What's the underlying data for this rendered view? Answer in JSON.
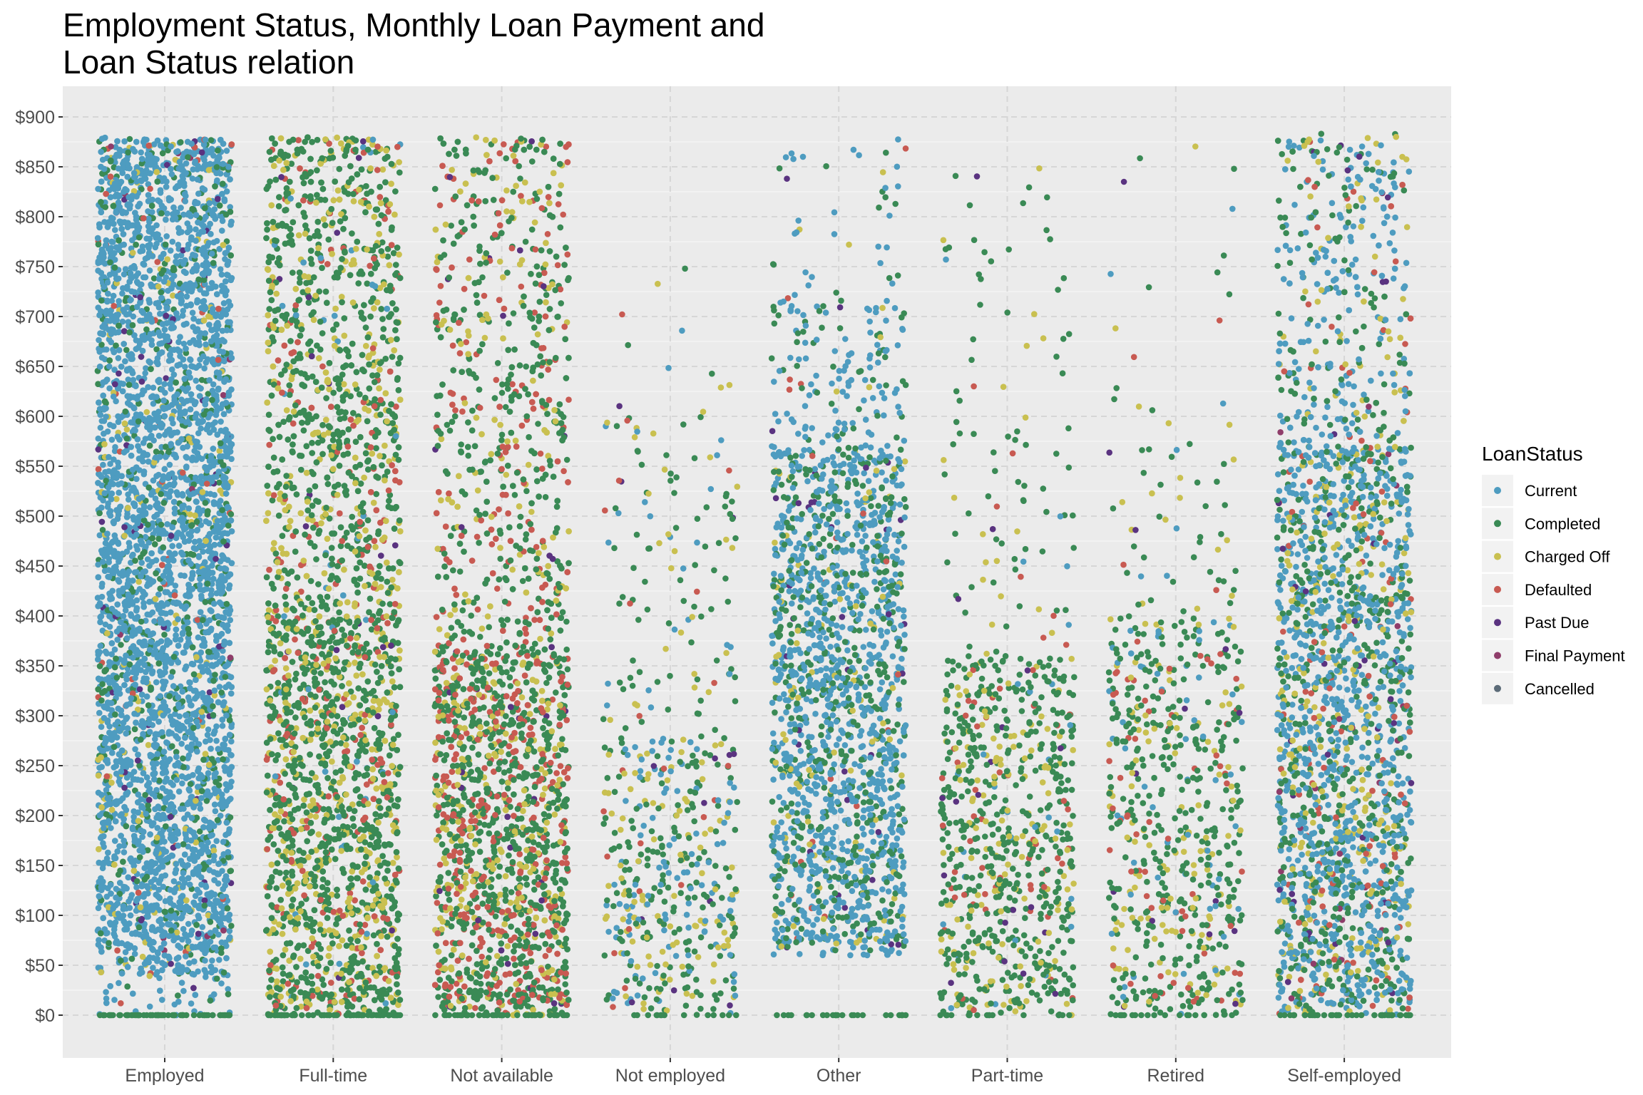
{
  "title_line1": "Employment Status, Monthly Loan Payment and",
  "title_line2": "Loan Status relation",
  "chart_data": {
    "type": "scatter",
    "title": "Employment Status, Monthly Loan Payment and Loan Status relation",
    "xlabel": "",
    "ylabel": "",
    "jitter": true,
    "categories": [
      "Employed",
      "Full-time",
      "Not available",
      "Not employed",
      "Other",
      "Part-time",
      "Retired",
      "Self-employed"
    ],
    "y_ticks": [
      "$0",
      "$50",
      "$100",
      "$150",
      "$200",
      "$250",
      "$300",
      "$350",
      "$400",
      "$450",
      "$500",
      "$550",
      "$600",
      "$650",
      "$700",
      "$750",
      "$800",
      "$850",
      "$900"
    ],
    "ylim": [
      -45,
      935
    ],
    "grid": true,
    "legend": {
      "title": "LoanStatus",
      "position": "right",
      "entries": [
        {
          "label": "Current",
          "color": "#4e9cc0"
        },
        {
          "label": "Completed",
          "color": "#3a8a55"
        },
        {
          "label": "Charged Off",
          "color": "#c9c050"
        },
        {
          "label": "Defaulted",
          "color": "#c85a52"
        },
        {
          "label": "Past Due",
          "color": "#5a3380"
        },
        {
          "label": "Final Payment",
          "color": "#8f3d6a"
        },
        {
          "label": "Cancelled",
          "color": "#5c6b78"
        }
      ]
    },
    "series_summary": [
      {
        "category": "Employed",
        "y_range": [
          0,
          885
        ],
        "count_approx": 6000,
        "mix": {
          "Current": 0.8,
          "Completed": 0.13,
          "Charged Off": 0.04,
          "Defaulted": 0.01,
          "Past Due": 0.015,
          "Final Payment": 0.005
        }
      },
      {
        "category": "Full-time",
        "y_range": [
          0,
          885
        ],
        "count_approx": 5200,
        "mix": {
          "Completed": 0.62,
          "Charged Off": 0.25,
          "Defaulted": 0.1,
          "Current": 0.02,
          "Past Due": 0.01
        }
      },
      {
        "category": "Not available",
        "y_range": [
          0,
          885
        ],
        "count_approx": 3600,
        "mix": {
          "Completed": 0.55,
          "Charged Off": 0.18,
          "Defaulted": 0.25,
          "Past Due": 0.02
        }
      },
      {
        "category": "Not employed",
        "y_range": [
          0,
          760
        ],
        "count_approx": 550,
        "mix": {
          "Completed": 0.45,
          "Current": 0.22,
          "Charged Off": 0.25,
          "Defaulted": 0.05,
          "Past Due": 0.03
        }
      },
      {
        "category": "Other",
        "y_range": [
          60,
          880
        ],
        "count_approx": 1900,
        "mix": {
          "Current": 0.62,
          "Completed": 0.3,
          "Charged Off": 0.05,
          "Defaulted": 0.01,
          "Past Due": 0.02
        }
      },
      {
        "category": "Part-time",
        "y_range": [
          0,
          860
        ],
        "count_approx": 850,
        "mix": {
          "Completed": 0.7,
          "Charged Off": 0.18,
          "Current": 0.04,
          "Defaulted": 0.06,
          "Past Due": 0.02
        }
      },
      {
        "category": "Retired",
        "y_range": [
          0,
          880
        ],
        "count_approx": 700,
        "mix": {
          "Completed": 0.6,
          "Charged Off": 0.18,
          "Current": 0.1,
          "Defaulted": 0.1,
          "Past Due": 0.02
        }
      },
      {
        "category": "Self-employed",
        "y_range": [
          0,
          885
        ],
        "count_approx": 3000,
        "mix": {
          "Current": 0.5,
          "Completed": 0.3,
          "Charged Off": 0.12,
          "Defaulted": 0.05,
          "Past Due": 0.02,
          "Final Payment": 0.01
        }
      }
    ]
  }
}
